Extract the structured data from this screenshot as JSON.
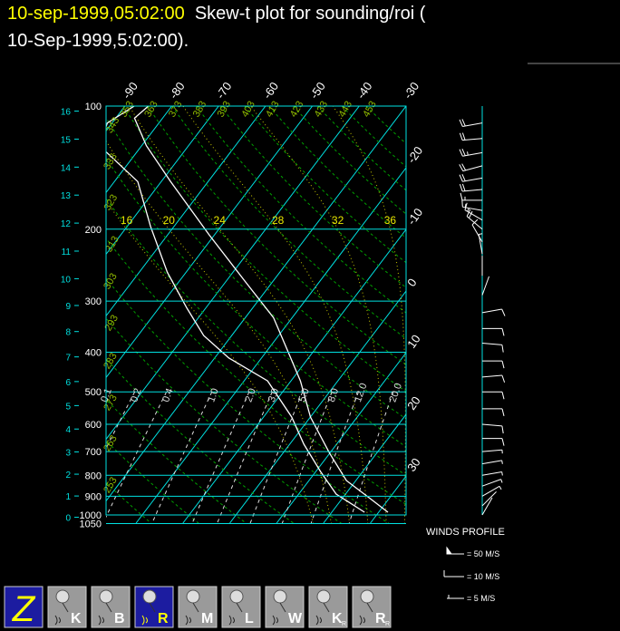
{
  "header": {
    "title_time": "10-sep-1999,05:02:00",
    "title_text": "Skew-t plot for sounding/roi (",
    "title_line2": "10-Sep-1999,5:02:00)."
  },
  "skewt": {
    "pressure_ticks": [
      100,
      200,
      300,
      400,
      500,
      600,
      700,
      800,
      900,
      1000,
      1050
    ],
    "height_ticks_km": [
      0,
      1,
      2,
      3,
      4,
      5,
      6,
      7,
      8,
      9,
      10,
      11,
      12,
      13,
      14,
      15,
      16
    ],
    "isotherm_labels": [
      -90,
      -80,
      -70,
      -60,
      -50,
      -40,
      -30,
      -20,
      -10,
      0,
      10,
      20,
      30
    ],
    "dry_adiabats": [
      243,
      253,
      263,
      273,
      283,
      293,
      303,
      313,
      323,
      333,
      343,
      353,
      363,
      373,
      383,
      393,
      403,
      413,
      423,
      433,
      443,
      453
    ],
    "moist_adiabats": [
      16,
      20,
      24,
      28,
      32,
      36
    ],
    "mixing_ratios": [
      0.1,
      0.2,
      0.4,
      {
        "value": 1,
        "label": "1.0"
      },
      {
        "value": 2,
        "label": "2.0"
      },
      {
        "value": 3,
        "label": "3.0"
      },
      {
        "value": 5,
        "label": "5.0"
      },
      {
        "value": 8,
        "label": "8.0"
      },
      {
        "value": 12,
        "label": "12.0"
      },
      {
        "value": 20,
        "label": "20.0"
      }
    ],
    "temperature": {
      "pressure": [
        985,
        912,
        824,
        707,
        576,
        470,
        393,
        329,
        268,
        207,
        153,
        125,
        107,
        100
      ],
      "values": [
        32,
        26,
        18,
        10,
        0,
        -8,
        -16,
        -24,
        -36,
        -51,
        -68,
        -79,
        -86,
        -85
      ]
    },
    "dewpoint": {
      "pressure": [
        985,
        889,
        783,
        671,
        576,
        470,
        413,
        364,
        312,
        255,
        197,
        153,
        125,
        110,
        100
      ],
      "values": [
        27,
        18,
        11,
        3,
        -4,
        -15,
        -27,
        -36,
        -44,
        -54,
        -65,
        -75,
        -89,
        -91,
        -88
      ]
    },
    "winds": {
      "pressure": [
        110,
        120,
        130,
        140,
        150,
        160,
        170,
        180,
        190,
        200,
        215,
        230,
        260,
        290,
        320,
        350,
        380,
        420,
        460,
        500,
        550,
        600,
        650,
        700,
        750,
        800,
        850,
        900,
        950,
        1000
      ],
      "direction": [
        260,
        265,
        260,
        255,
        260,
        265,
        270,
        280,
        300,
        310,
        330,
        350,
        0,
        20,
        80,
        90,
        95,
        90,
        85,
        90,
        90,
        95,
        90,
        85,
        80,
        80,
        70,
        60,
        45,
        30
      ],
      "speed": [
        20,
        22,
        25,
        22,
        24,
        20,
        18,
        15,
        18,
        20,
        10,
        5,
        4,
        4,
        10,
        12,
        10,
        12,
        10,
        12,
        12,
        10,
        10,
        8,
        8,
        6,
        5,
        5,
        4,
        3
      ]
    }
  },
  "wind_legend": {
    "title": "WINDS PROFILE",
    "items": [
      "= 50 M/S",
      "= 10 M/S",
      "= 5 M/S"
    ]
  },
  "toolbar": [
    {
      "label": "Z"
    },
    {
      "label": "K"
    },
    {
      "label": "B"
    },
    {
      "label": "R"
    },
    {
      "label": "M"
    },
    {
      "label": "L"
    },
    {
      "label": "W"
    },
    {
      "label": "K",
      "sub": "R"
    },
    {
      "label": "R",
      "sub": "R"
    }
  ]
}
